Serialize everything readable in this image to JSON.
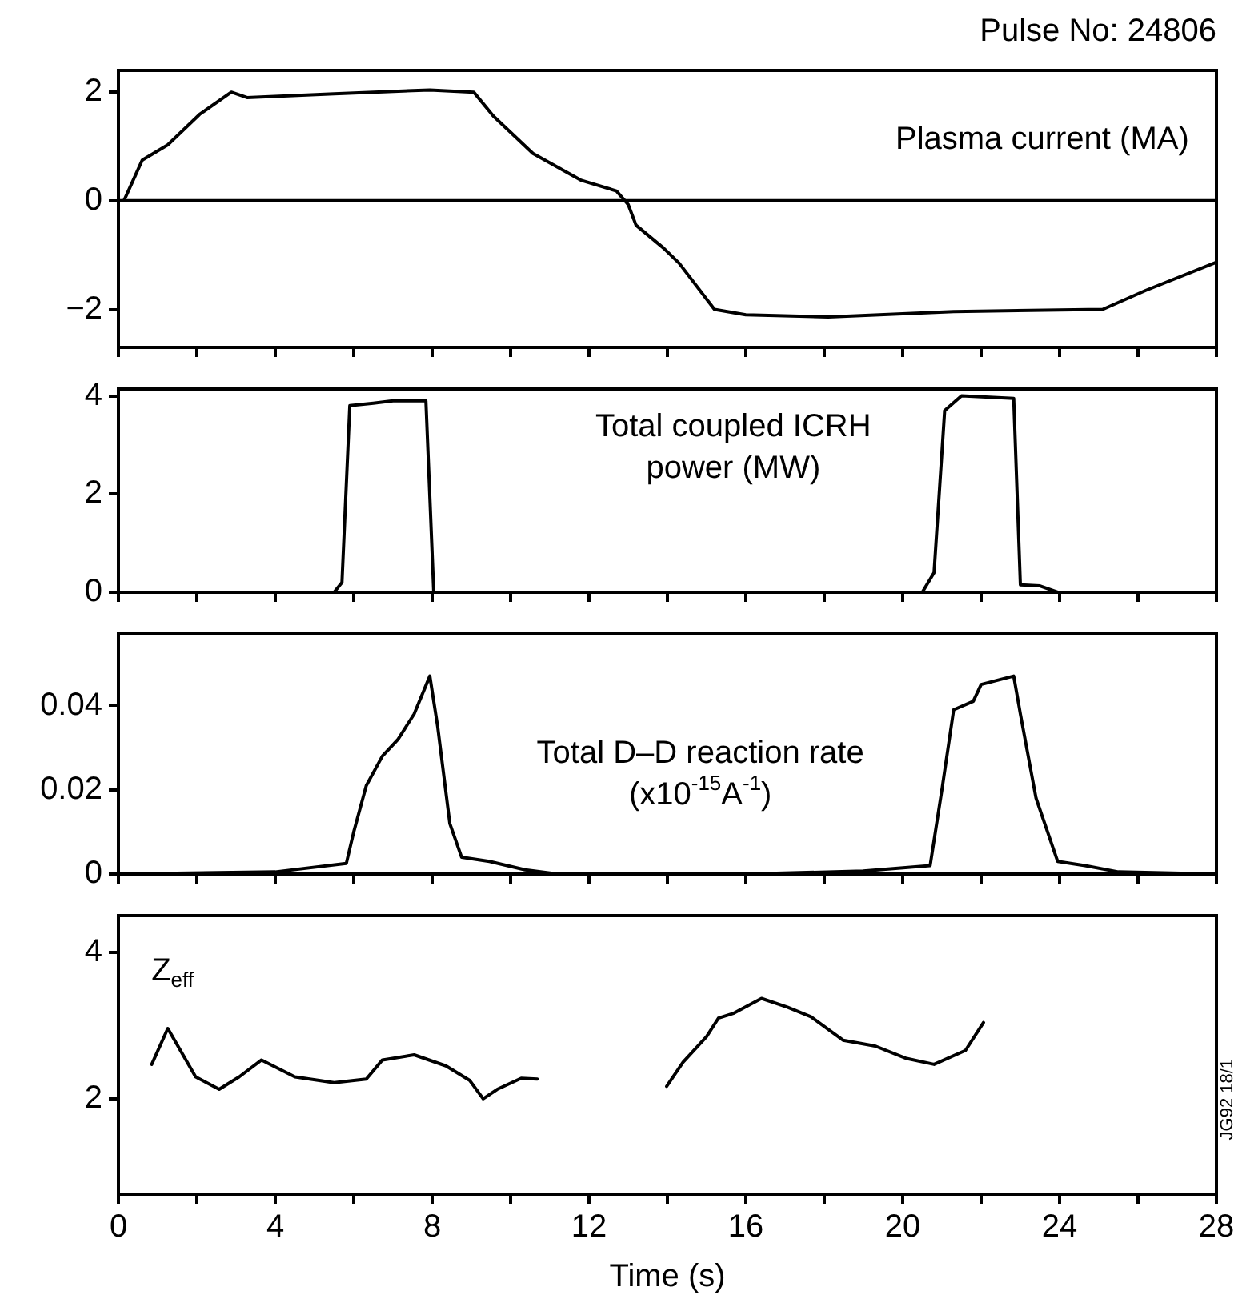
{
  "chart_data": [
    {
      "type": "line",
      "title": "Pulse No: 24806",
      "annotations": [
        "Plasma current (MA)"
      ],
      "xlim": [
        0,
        28
      ],
      "ylim": [
        -2.7,
        2.4
      ],
      "yticks": [
        -2,
        0,
        2
      ],
      "xticks": [
        0,
        {
          "value": 2,
          "label": null
        },
        4,
        {
          "value": 6,
          "label": null
        },
        8,
        {
          "value": 10,
          "label": null
        },
        12,
        {
          "value": 14,
          "label": null
        },
        16,
        {
          "value": 18,
          "label": null
        },
        20,
        {
          "value": 22,
          "label": null
        },
        24,
        {
          "value": 26,
          "label": null
        },
        28
      ],
      "tick_labels": "y",
      "grid": false,
      "legend": false,
      "marker": "none",
      "line_style": "solid",
      "ref_lines": [
        {
          "axis": "y",
          "value": 0,
          "color": "#000000"
        }
      ],
      "series": [
        {
          "color": "#000000",
          "x": [
            0.14,
            0.61,
            1.26,
            2.07,
            2.88,
            3.28,
            5.5,
            7.94,
            9.06,
            9.56,
            10.57,
            11.79,
            12.7,
            13.0,
            13.2,
            13.9,
            14.3,
            15.2,
            16.0,
            18.1,
            21.3,
            25.1,
            26.2,
            28.0
          ],
          "values": [
            0,
            0.75,
            1.03,
            1.59,
            2.0,
            1.9,
            1.97,
            2.04,
            2.0,
            1.56,
            0.87,
            0.38,
            0.18,
            -0.07,
            -0.45,
            -0.87,
            -1.15,
            -2.0,
            -2.1,
            -2.14,
            -2.04,
            -2.0,
            -1.65,
            -1.13
          ]
        }
      ]
    },
    {
      "type": "line",
      "annotations": [
        "Total coupled ICRH power (MW)"
      ],
      "xlim": [
        0,
        28
      ],
      "ylim": [
        0,
        4.14
      ],
      "yticks": [
        0,
        2,
        4
      ],
      "xticks": [
        0,
        {
          "value": 2,
          "label": null
        },
        4,
        {
          "value": 6,
          "label": null
        },
        8,
        {
          "value": 10,
          "label": null
        },
        12,
        {
          "value": 14,
          "label": null
        },
        16,
        {
          "value": 18,
          "label": null
        },
        20,
        {
          "value": 22,
          "label": null
        },
        24,
        {
          "value": 26,
          "label": null
        },
        28
      ],
      "tick_labels": "y",
      "grid": false,
      "legend": false,
      "marker": "none",
      "line_style": "solid",
      "series": [
        {
          "color": "#000000",
          "x": [
            0,
            5.5,
            5.7,
            5.9,
            6.5,
            7.0,
            7.84,
            8.04,
            20.5,
            20.8,
            21.07,
            21.5,
            22.83,
            23.0,
            23.5,
            23.95,
            28
          ],
          "values": [
            0,
            0,
            0.2,
            3.8,
            3.85,
            3.9,
            3.9,
            0,
            0,
            0.4,
            3.7,
            4.0,
            3.95,
            0.15,
            0.13,
            0,
            0
          ]
        }
      ]
    },
    {
      "type": "line",
      "annotations": [
        "Total D–D reaction rate (x10$^{-15}$A$^{-1}$)"
      ],
      "xlim": [
        0,
        28
      ],
      "ylim": [
        0,
        0.057
      ],
      "yticks": [
        0,
        0.02,
        0.04
      ],
      "xticks": [
        0,
        {
          "value": 2,
          "label": null
        },
        4,
        {
          "value": 6,
          "label": null
        },
        8,
        {
          "value": 10,
          "label": null
        },
        12,
        {
          "value": 14,
          "label": null
        },
        16,
        {
          "value": 18,
          "label": null
        },
        20,
        {
          "value": 22,
          "label": null
        },
        24,
        {
          "value": 26,
          "label": null
        },
        28
      ],
      "tick_labels": "y",
      "grid": false,
      "legend": false,
      "marker": "none",
      "line_style": "solid",
      "series": [
        {
          "color": "#000000",
          "x": [
            0,
            4,
            5.81,
            6.0,
            6.32,
            6.73,
            7.13,
            7.54,
            7.94,
            8.14,
            8.45,
            8.75,
            9.46,
            10.37,
            11.2,
            16,
            19,
            20.7,
            21.0,
            21.3,
            21.8,
            22.0,
            22.83,
            23.0,
            23.4,
            23.95,
            24.65,
            25.5,
            28
          ],
          "values": [
            0,
            0.0005,
            0.0025,
            0.01,
            0.021,
            0.028,
            0.032,
            0.038,
            0.047,
            0.035,
            0.012,
            0.004,
            0.003,
            0.001,
            0,
            0,
            0.0007,
            0.002,
            0.02,
            0.039,
            0.041,
            0.045,
            0.047,
            0.038,
            0.018,
            0.003,
            0.002,
            0.0005,
            0
          ]
        }
      ]
    },
    {
      "type": "line",
      "xlabel": "Time (s)",
      "annotations": [
        "Z$_{eff}$",
        "JG92 18/1"
      ],
      "xlim": [
        0,
        28
      ],
      "ylim": [
        0.7,
        4.5
      ],
      "yticks": [
        2,
        4
      ],
      "xticks": [
        0,
        {
          "value": 2,
          "label": null
        },
        4,
        {
          "value": 6,
          "label": null
        },
        8,
        {
          "value": 10,
          "label": null
        },
        12,
        {
          "value": 14,
          "label": null
        },
        16,
        {
          "value": 18,
          "label": null
        },
        20,
        {
          "value": 22,
          "label": null
        },
        24,
        {
          "value": 26,
          "label": null
        },
        28
      ],
      "grid": false,
      "legend": false,
      "marker": "none",
      "line_style": "solid",
      "series": [
        {
          "color": "#000000",
          "x": [
            0.85,
            1.26,
            1.97,
            2.57,
            3.08,
            3.65,
            4.5,
            5.5,
            6.32,
            6.73,
            7.54,
            8.35,
            8.96,
            9.3,
            9.66,
            10.27,
            10.68,
            12.3,
            13.98,
            14.4,
            15.0,
            15.3,
            15.7,
            16.4,
            17.06,
            17.66,
            18.48,
            19.3,
            20.1,
            20.8,
            21.6,
            22.06
          ],
          "values": [
            2.47,
            2.96,
            2.3,
            2.13,
            2.3,
            2.53,
            2.3,
            2.22,
            2.27,
            2.53,
            2.6,
            2.45,
            2.25,
            2.0,
            2.13,
            2.28,
            2.27,
            null,
            2.17,
            2.5,
            2.85,
            3.1,
            3.17,
            3.37,
            3.25,
            3.12,
            2.8,
            2.72,
            2.55,
            2.47,
            2.66,
            3.04
          ]
        }
      ]
    }
  ]
}
